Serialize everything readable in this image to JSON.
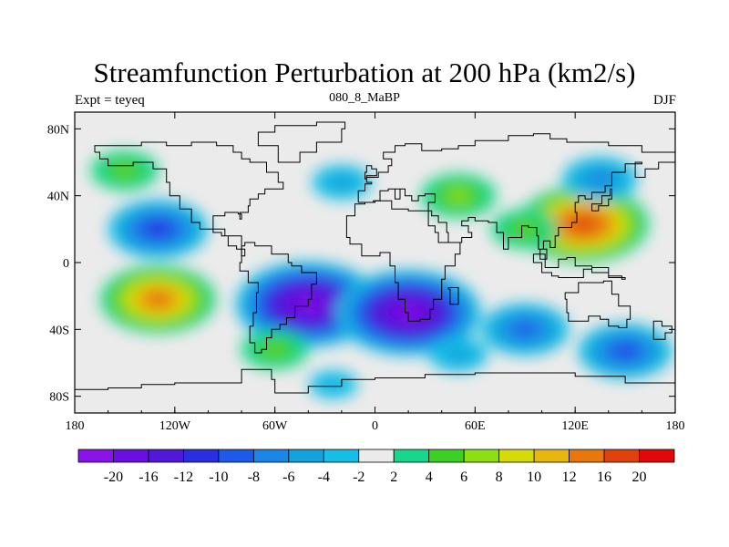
{
  "header": {
    "title": "Streamfunction Perturbation at 200 hPa (km2/s)",
    "subtitle": "080_8_MaBP",
    "left_string": "Expt = teyeq",
    "right_string": "DJF"
  },
  "map": {
    "projection": "cylindrical-equidistant",
    "lon_range": [
      -180,
      180
    ],
    "lat_range": [
      -90,
      90
    ],
    "x_ticks": [
      {
        "value": -180,
        "label": "180"
      },
      {
        "value": -120,
        "label": "120W"
      },
      {
        "value": -60,
        "label": "60W"
      },
      {
        "value": 0,
        "label": "0"
      },
      {
        "value": 60,
        "label": "60E"
      },
      {
        "value": 120,
        "label": "120E"
      },
      {
        "value": 180,
        "label": "180"
      }
    ],
    "y_ticks": [
      {
        "value": 80,
        "label": "80N"
      },
      {
        "value": 40,
        "label": "40N"
      },
      {
        "value": 0,
        "label": "0"
      },
      {
        "value": -40,
        "label": "40S"
      },
      {
        "value": -80,
        "label": "80S"
      }
    ]
  },
  "colorbar": {
    "levels": [
      "-20",
      "-16",
      "-12",
      "-10",
      "-8",
      "-6",
      "-4",
      "-2",
      "2",
      "4",
      "6",
      "8",
      "10",
      "12",
      "16",
      "20"
    ],
    "colors": [
      "#8a14e8",
      "#6b0fe0",
      "#5218d8",
      "#2a2ee0",
      "#1e5ae8",
      "#1c86e8",
      "#13a2dc",
      "#16bee6",
      "#ebebeb",
      "#18d68c",
      "#3ccf26",
      "#8ede16",
      "#d6da0a",
      "#e8b60e",
      "#e8780e",
      "#e0420e",
      "#e00808"
    ]
  },
  "chart_data": {
    "type": "heatmap",
    "variable": "streamfunction perturbation",
    "units": "km2/s",
    "anomalies": [
      {
        "lon": -130,
        "lat": 20,
        "value": -11
      },
      {
        "lon": -40,
        "lat": -25,
        "value": -20
      },
      {
        "lon": 20,
        "lat": -30,
        "value": -20
      },
      {
        "lon": -130,
        "lat": -22,
        "value": 14
      },
      {
        "lon": 125,
        "lat": 23,
        "value": 17
      },
      {
        "lon": 150,
        "lat": -53,
        "value": -10
      },
      {
        "lon": 90,
        "lat": -40,
        "value": -9
      },
      {
        "lon": 135,
        "lat": 50,
        "value": -7
      },
      {
        "lon": 50,
        "lat": 40,
        "value": 7
      },
      {
        "lon": -150,
        "lat": 55,
        "value": 6
      },
      {
        "lon": 90,
        "lat": 20,
        "value": 6
      },
      {
        "lon": -60,
        "lat": -52,
        "value": 6
      },
      {
        "lon": -20,
        "lat": 48,
        "value": -5
      },
      {
        "lon": 50,
        "lat": -55,
        "value": -5
      },
      {
        "lon": -25,
        "lat": -73,
        "value": -4
      }
    ]
  }
}
